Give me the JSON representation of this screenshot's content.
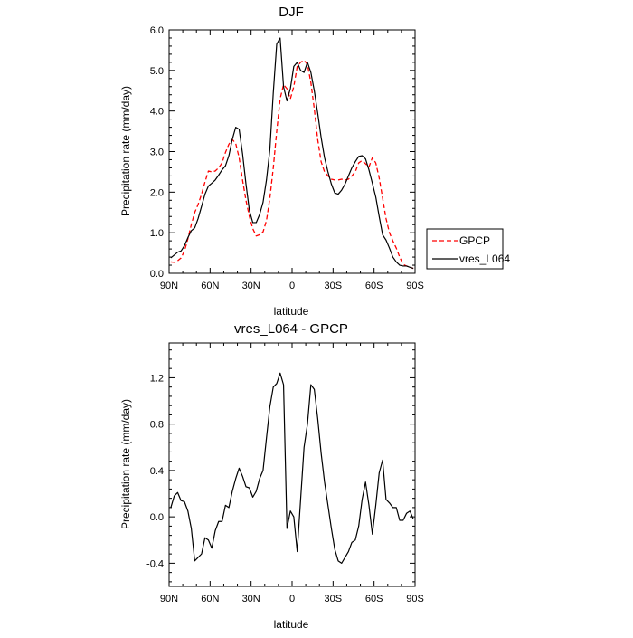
{
  "chart_data": [
    {
      "type": "line",
      "title": "DJF",
      "xlabel": "latitude",
      "ylabel": "Precipitation rate (mm/day)",
      "xlim": [
        -90,
        90
      ],
      "ylim": [
        0,
        6
      ],
      "x_ticks": [
        -90,
        -60,
        -30,
        0,
        30,
        60,
        90
      ],
      "x_tick_labels": [
        "90N",
        "60N",
        "30N",
        "0",
        "30S",
        "60S",
        "90S"
      ],
      "y_ticks": [
        0,
        1,
        2,
        3,
        4,
        5,
        6
      ],
      "y_tick_labels": [
        "0.0",
        "1.0",
        "2.0",
        "3.0",
        "4.0",
        "5.0",
        "6.0"
      ],
      "legend_position": "right",
      "series": [
        {
          "name": "GPCP",
          "color": "#ff0000",
          "dash": "dashed",
          "x": [
            -88.75,
            -86.25,
            -83.75,
            -81.25,
            -78.75,
            -76.25,
            -73.75,
            -71.25,
            -68.75,
            -66.25,
            -63.75,
            -61.25,
            -58.75,
            -56.25,
            -53.75,
            -51.25,
            -48.75,
            -46.25,
            -43.75,
            -41.25,
            -38.75,
            -36.25,
            -33.75,
            -31.25,
            -28.75,
            -26.25,
            -23.75,
            -21.25,
            -18.75,
            -16.25,
            -13.75,
            -11.25,
            -8.75,
            -6.25,
            -3.75,
            -1.25,
            1.25,
            3.75,
            6.25,
            8.75,
            11.25,
            13.75,
            16.25,
            18.75,
            21.25,
            23.75,
            26.25,
            28.75,
            31.25,
            33.75,
            36.25,
            38.75,
            41.25,
            43.75,
            46.25,
            48.75,
            51.25,
            53.75,
            56.25,
            58.75,
            61.25,
            63.75,
            66.25,
            68.75,
            71.25,
            73.75,
            76.25,
            78.75,
            81.25,
            83.75,
            86.25,
            88.75
          ],
          "y": [
            0.28,
            0.27,
            0.31,
            0.38,
            0.55,
            0.85,
            1.2,
            1.5,
            1.7,
            1.95,
            2.25,
            2.52,
            2.5,
            2.52,
            2.6,
            2.72,
            2.98,
            3.18,
            3.3,
            3.2,
            2.85,
            2.3,
            1.8,
            1.4,
            1.1,
            0.92,
            0.95,
            1.02,
            1.3,
            1.85,
            2.6,
            3.5,
            4.3,
            4.65,
            4.55,
            4.3,
            4.6,
            5.1,
            5.2,
            5.25,
            5.15,
            4.7,
            4.05,
            3.3,
            2.75,
            2.5,
            2.4,
            2.32,
            2.3,
            2.3,
            2.32,
            2.3,
            2.32,
            2.4,
            2.5,
            2.72,
            2.78,
            2.7,
            2.62,
            2.85,
            2.72,
            2.35,
            1.85,
            1.35,
            1.0,
            0.8,
            0.62,
            0.4,
            0.22,
            0.18,
            0.15,
            0.12
          ]
        },
        {
          "name": "vres_L064",
          "color": "#000000",
          "dash": "solid",
          "x": [
            -88.75,
            -86.25,
            -83.75,
            -81.25,
            -78.75,
            -76.25,
            -73.75,
            -71.25,
            -68.75,
            -66.25,
            -63.75,
            -61.25,
            -58.75,
            -56.25,
            -53.75,
            -51.25,
            -48.75,
            -46.25,
            -43.75,
            -41.25,
            -38.75,
            -36.25,
            -33.75,
            -31.25,
            -28.75,
            -26.25,
            -23.75,
            -21.25,
            -18.75,
            -16.25,
            -13.75,
            -11.25,
            -8.75,
            -6.25,
            -3.75,
            -1.25,
            1.25,
            3.75,
            6.25,
            8.75,
            11.25,
            13.75,
            16.25,
            18.75,
            21.25,
            23.75,
            26.25,
            28.75,
            31.25,
            33.75,
            36.25,
            38.75,
            41.25,
            43.75,
            46.25,
            48.75,
            51.25,
            53.75,
            56.25,
            58.75,
            61.25,
            63.75,
            66.25,
            68.75,
            71.25,
            73.75,
            76.25,
            78.75,
            81.25,
            83.75,
            86.25,
            88.75
          ],
          "y": [
            0.38,
            0.45,
            0.52,
            0.55,
            0.68,
            0.88,
            1.05,
            1.12,
            1.35,
            1.65,
            1.95,
            2.15,
            2.22,
            2.3,
            2.42,
            2.55,
            2.65,
            2.9,
            3.3,
            3.6,
            3.55,
            2.95,
            2.2,
            1.55,
            1.25,
            1.25,
            1.45,
            1.75,
            2.3,
            3.05,
            4.45,
            5.65,
            5.8,
            4.6,
            4.25,
            4.55,
            5.1,
            5.2,
            5.0,
            4.95,
            5.2,
            4.95,
            4.5,
            3.95,
            3.35,
            2.85,
            2.5,
            2.2,
            1.98,
            1.95,
            2.05,
            2.2,
            2.4,
            2.6,
            2.75,
            2.88,
            2.9,
            2.82,
            2.55,
            2.22,
            1.88,
            1.4,
            0.95,
            0.82,
            0.62,
            0.4,
            0.28,
            0.2,
            0.18,
            0.18,
            0.15,
            0.12
          ]
        }
      ]
    },
    {
      "type": "line",
      "title": "vres_L064 - GPCP",
      "xlabel": "latitude",
      "ylabel": "Precipitation rate (mm/day)",
      "xlim": [
        -90,
        90
      ],
      "ylim": [
        -0.6,
        1.5
      ],
      "x_ticks": [
        -90,
        -60,
        -30,
        0,
        30,
        60,
        90
      ],
      "x_tick_labels": [
        "90N",
        "60N",
        "30N",
        "0",
        "30S",
        "60S",
        "90S"
      ],
      "y_ticks": [
        -0.4,
        0.0,
        0.4,
        0.8,
        1.2
      ],
      "y_tick_labels": [
        "-0.4",
        "0.0",
        "0.4",
        "0.8",
        "1.2"
      ],
      "series": [
        {
          "color": "#000000",
          "dash": "solid",
          "x": [
            -88.75,
            -86.25,
            -83.75,
            -81.25,
            -78.75,
            -76.25,
            -73.75,
            -71.25,
            -68.75,
            -66.25,
            -63.75,
            -61.25,
            -58.75,
            -56.25,
            -53.75,
            -51.25,
            -48.75,
            -46.25,
            -43.75,
            -41.25,
            -38.75,
            -36.25,
            -33.75,
            -31.25,
            -28.75,
            -26.25,
            -23.75,
            -21.25,
            -18.75,
            -16.25,
            -13.75,
            -11.25,
            -8.75,
            -6.25,
            -3.75,
            -1.25,
            1.25,
            3.75,
            6.25,
            8.75,
            11.25,
            13.75,
            16.25,
            18.75,
            21.25,
            23.75,
            26.25,
            28.75,
            31.25,
            33.75,
            36.25,
            38.75,
            41.25,
            43.75,
            46.25,
            48.75,
            51.25,
            53.75,
            56.25,
            58.75,
            61.25,
            63.75,
            66.25,
            68.75,
            71.25,
            73.75,
            76.25,
            78.75,
            81.25,
            83.75,
            86.25,
            88.75
          ],
          "y": [
            0.08,
            0.18,
            0.21,
            0.14,
            0.13,
            0.05,
            -0.1,
            -0.38,
            -0.35,
            -0.32,
            -0.18,
            -0.2,
            -0.27,
            -0.12,
            -0.04,
            -0.04,
            0.1,
            0.08,
            0.22,
            0.33,
            0.42,
            0.35,
            0.26,
            0.25,
            0.17,
            0.22,
            0.33,
            0.4,
            0.68,
            0.95,
            1.12,
            1.15,
            1.24,
            1.14,
            -0.1,
            0.05,
            0.0,
            -0.3,
            0.15,
            0.6,
            0.8,
            1.14,
            1.1,
            0.85,
            0.55,
            0.3,
            0.1,
            -0.1,
            -0.28,
            -0.38,
            -0.4,
            -0.35,
            -0.3,
            -0.22,
            -0.2,
            -0.08,
            0.15,
            0.3,
            0.1,
            -0.15,
            0.1,
            0.38,
            0.49,
            0.15,
            0.12,
            0.08,
            0.08,
            -0.03,
            -0.03,
            0.03,
            0.05,
            -0.02
          ]
        }
      ]
    }
  ]
}
